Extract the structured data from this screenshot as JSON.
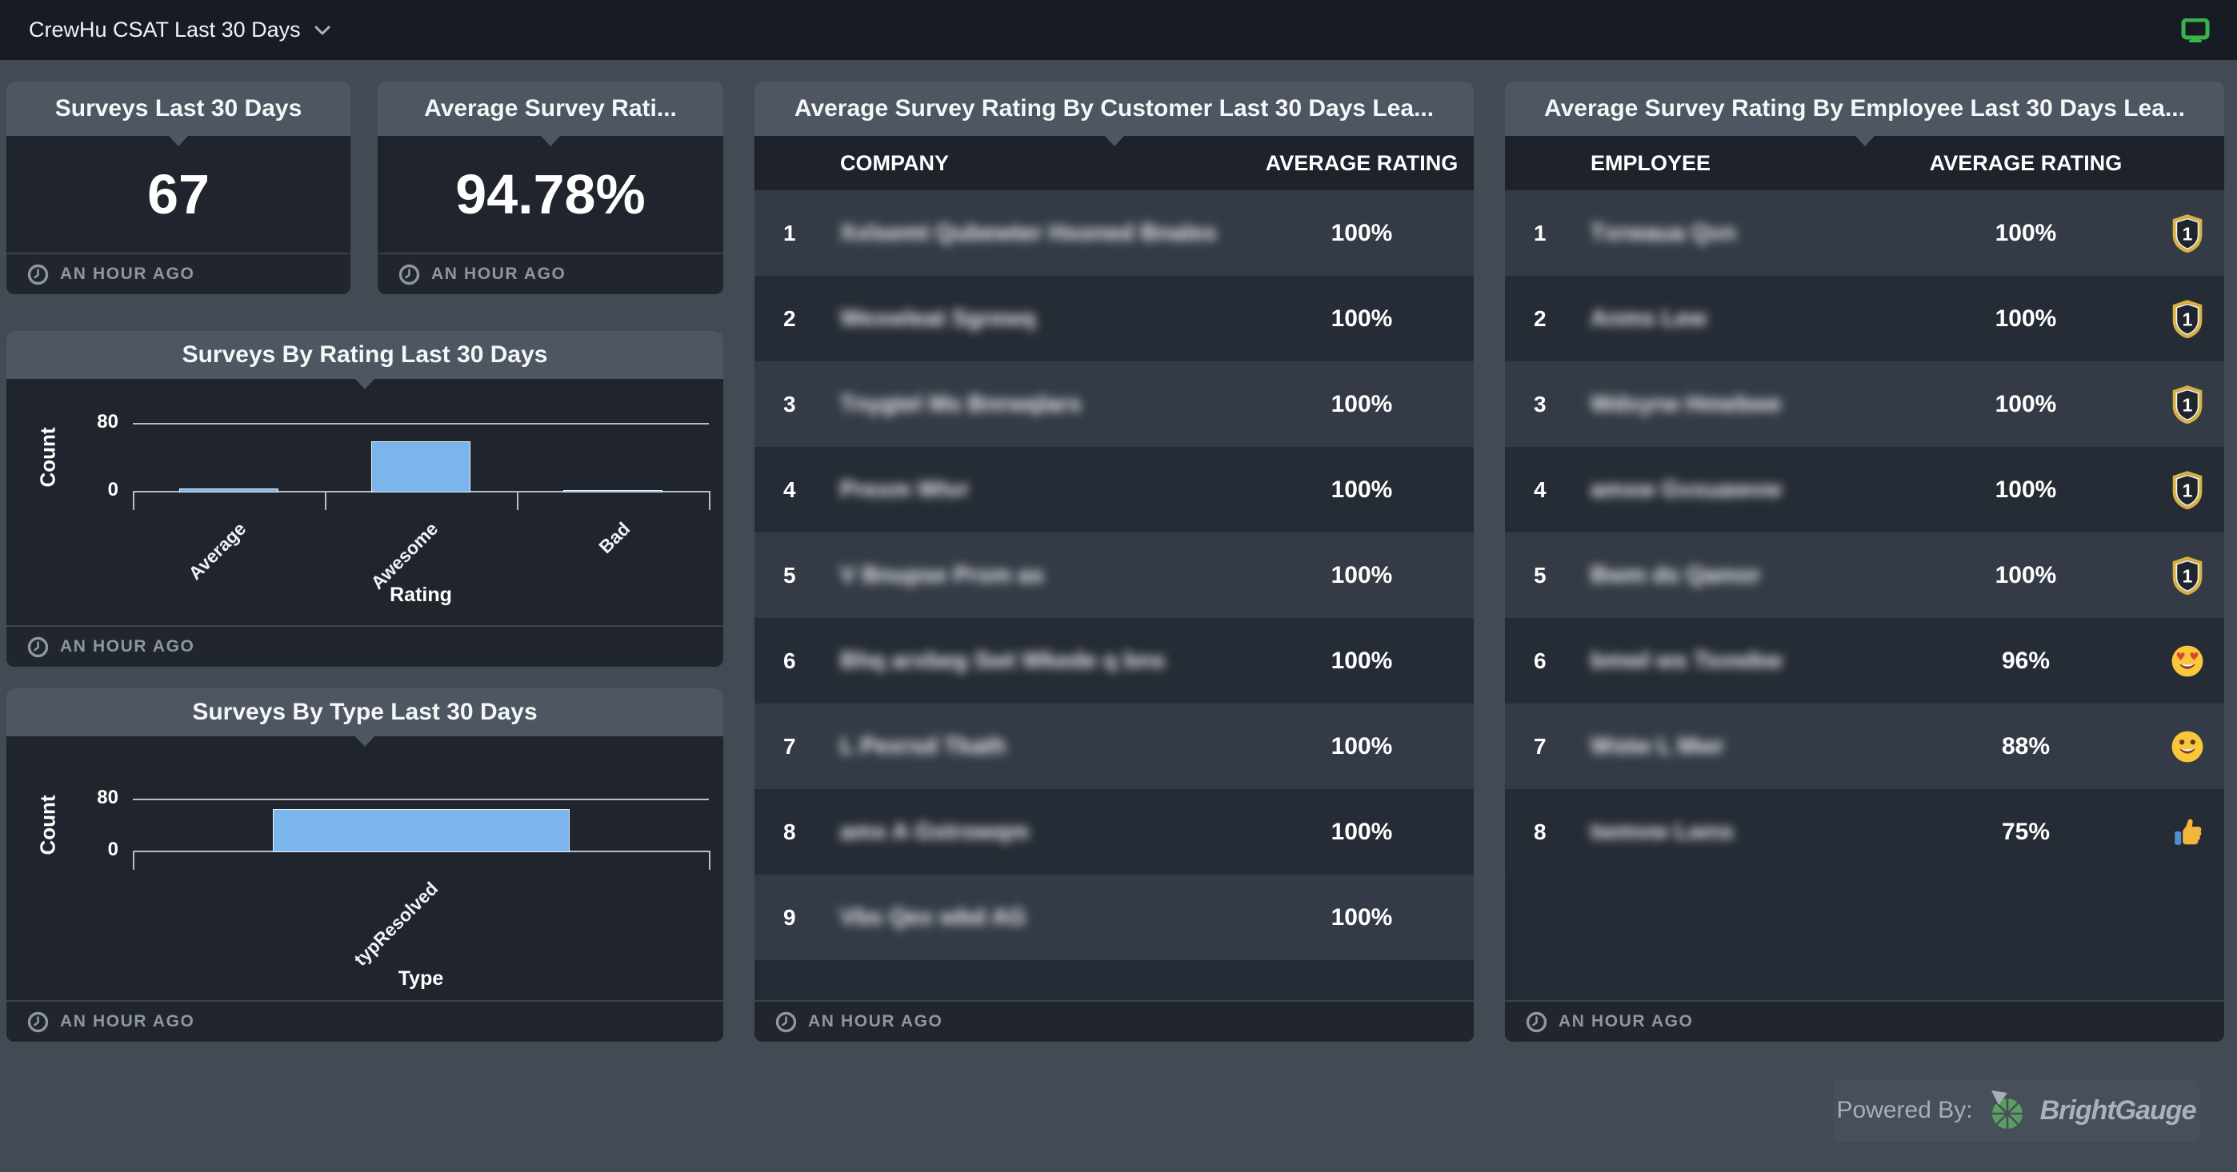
{
  "topbar": {
    "title": "CrewHu CSAT Last 30 Days",
    "accent_green": "#3cb24a"
  },
  "kpis": [
    {
      "title": "Surveys Last 30 Days",
      "value": "67",
      "updated": "AN HOUR AGO"
    },
    {
      "title": "Average Survey Rati...",
      "value": "94.78%",
      "updated": "AN HOUR AGO"
    }
  ],
  "chart_data": [
    {
      "type": "bar",
      "title": "Surveys By Rating Last 30 Days",
      "categories": [
        "Average",
        "Awesome",
        "Bad"
      ],
      "values": [
        5,
        60,
        2
      ],
      "xlabel": "Rating",
      "ylabel": "Count",
      "ylim": [
        0,
        80
      ],
      "yticks": [
        80,
        0
      ],
      "grid": true,
      "legend": false,
      "bar_color": "#7cb5ec",
      "updated": "AN HOUR AGO"
    },
    {
      "type": "bar",
      "title": "Surveys By Type Last 30 Days",
      "categories": [
        "typResolved"
      ],
      "values": [
        67
      ],
      "xlabel": "Type",
      "ylabel": "Count",
      "ylim": [
        0,
        80
      ],
      "yticks": [
        80,
        0
      ],
      "grid": true,
      "legend": false,
      "bar_color": "#7cb5ec",
      "updated": "AN HOUR AGO"
    }
  ],
  "customer_table": {
    "title": "Average Survey Rating By Customer Last 30 Days Lea...",
    "columns": [
      "COMPANY",
      "AVERAGE RATING"
    ],
    "updated": "AN HOUR AGO",
    "rows": [
      {
        "rank": "1",
        "name_blurred": "Xxlsemt Qubewter Hxoned Bnales",
        "rating": "100%"
      },
      {
        "rank": "2",
        "name_blurred": "Wexwleat Sgrewq",
        "rating": "100%"
      },
      {
        "rank": "3",
        "name_blurred": "Tnygtel Ms Bnrwqlars",
        "rating": "100%"
      },
      {
        "rank": "4",
        "name_blurred": "Prexm Wtvr",
        "rating": "100%"
      },
      {
        "rank": "5",
        "name_blurred": "V Bnupse Prsm as",
        "rating": "100%"
      },
      {
        "rank": "6",
        "name_blurred": "Bhq arxbeg Swt Wkede q bns",
        "rating": "100%"
      },
      {
        "rank": "7",
        "name_blurred": "L Pexrsd Tkath",
        "rating": "100%"
      },
      {
        "rank": "8",
        "name_blurred": "amx A Gstrowqm",
        "rating": "100%"
      },
      {
        "rank": "9",
        "name_blurred": "Vbs Qex wbd AG",
        "rating": "100%"
      }
    ]
  },
  "employee_table": {
    "title": "Average Survey Rating By Employee Last 30 Days Lea...",
    "columns": [
      "EMPLOYEE",
      "AVERAGE RATING"
    ],
    "updated": "AN HOUR AGO",
    "rows": [
      {
        "rank": "1",
        "name_blurred": "Txrwaua Qvn",
        "rating": "100%",
        "icon": "first-place-badge-icon"
      },
      {
        "rank": "2",
        "name_blurred": "Anms Lew",
        "rating": "100%",
        "icon": "first-place-badge-icon"
      },
      {
        "rank": "3",
        "name_blurred": "Wdxyrw Hmebwe",
        "rating": "100%",
        "icon": "first-place-badge-icon"
      },
      {
        "rank": "4",
        "name_blurred": "amxw Gvxuawvw",
        "rating": "100%",
        "icon": "first-place-badge-icon"
      },
      {
        "rank": "5",
        "name_blurred": "Bwm ds Qamor",
        "rating": "100%",
        "icon": "first-place-badge-icon"
      },
      {
        "rank": "6",
        "name_blurred": "bmwl ws Tsvwbw",
        "rating": "96%",
        "icon": "heart-eyes-emoji-icon"
      },
      {
        "rank": "7",
        "name_blurred": "Wstw L Mwr",
        "rating": "88%",
        "icon": "smiley-emoji-icon"
      },
      {
        "rank": "8",
        "name_blurred": "twmvw Lwns",
        "rating": "75%",
        "icon": "thumbs-up-emoji-icon"
      }
    ]
  },
  "powered_by": {
    "label": "Powered By:",
    "brand": "BrightGauge"
  }
}
